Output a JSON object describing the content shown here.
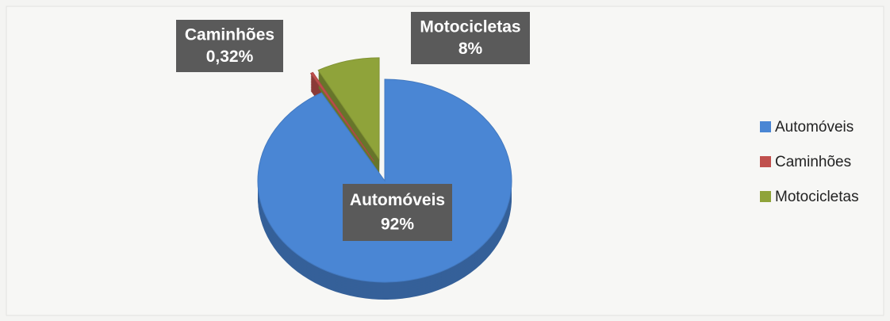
{
  "chart_data": {
    "type": "pie",
    "categories": [
      "Automóveis",
      "Caminhões",
      "Motocicletas"
    ],
    "values": [
      92,
      0.32,
      8
    ],
    "value_labels": [
      "92%",
      "0,32%",
      "8%"
    ],
    "colors": [
      "#4a86d4",
      "#c0504d",
      "#8fa33a"
    ],
    "legend": "right"
  }
}
